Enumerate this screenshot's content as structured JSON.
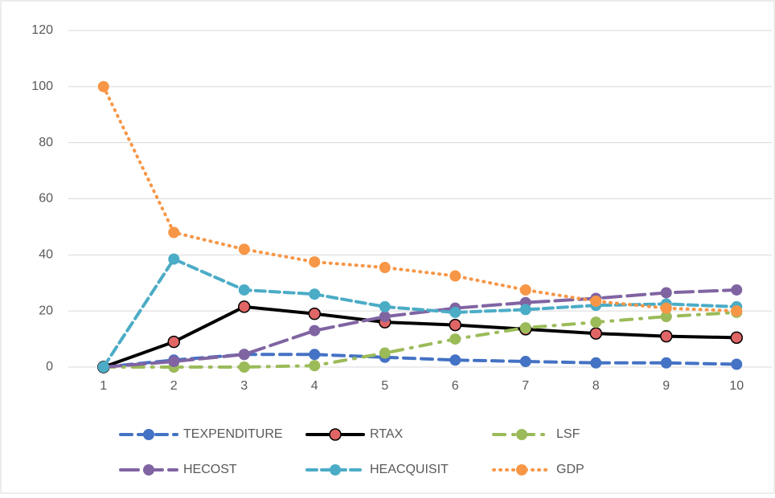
{
  "chart_data": {
    "type": "line",
    "categories": [
      1,
      2,
      3,
      4,
      5,
      6,
      7,
      8,
      9,
      10
    ],
    "series": [
      {
        "name": "TEXPENDITURE",
        "color": "#4472c4",
        "dash": "14 8",
        "values": [
          0,
          2.5,
          4.5,
          4.5,
          3.5,
          2.5,
          2,
          1.5,
          1.5,
          1
        ]
      },
      {
        "name": "RTAX",
        "color": "#000000",
        "marker_color": "#e06666",
        "dash": "none",
        "values": [
          0,
          9,
          21.5,
          19,
          16,
          15,
          13.5,
          12,
          11,
          10.5
        ]
      },
      {
        "name": "LSF",
        "color": "#9bbb59",
        "dash": "14 10 2 10",
        "values": [
          0,
          0,
          0,
          0.5,
          5,
          10,
          14,
          16,
          18,
          19.5
        ]
      },
      {
        "name": "HECOST",
        "color": "#8064a2",
        "dash": "22 8",
        "values": [
          0,
          2,
          4.5,
          13,
          18,
          21,
          23,
          24.5,
          26.5,
          27.5
        ]
      },
      {
        "name": "HEACQUISIT",
        "color": "#4bacc6",
        "dash": "12 6",
        "values": [
          0,
          38.5,
          27.5,
          26,
          21.5,
          19.5,
          20.5,
          22,
          22.5,
          21.5
        ]
      },
      {
        "name": "GDP",
        "color": "#f79646",
        "dash": "1 7",
        "values": [
          100,
          48,
          42,
          37.5,
          35.5,
          32.5,
          27.5,
          23.5,
          21,
          20
        ]
      }
    ],
    "ylim": [
      0,
      120
    ],
    "yticks": [
      0,
      20,
      40,
      60,
      80,
      100,
      120
    ],
    "grid": true,
    "legend": "bottom"
  }
}
